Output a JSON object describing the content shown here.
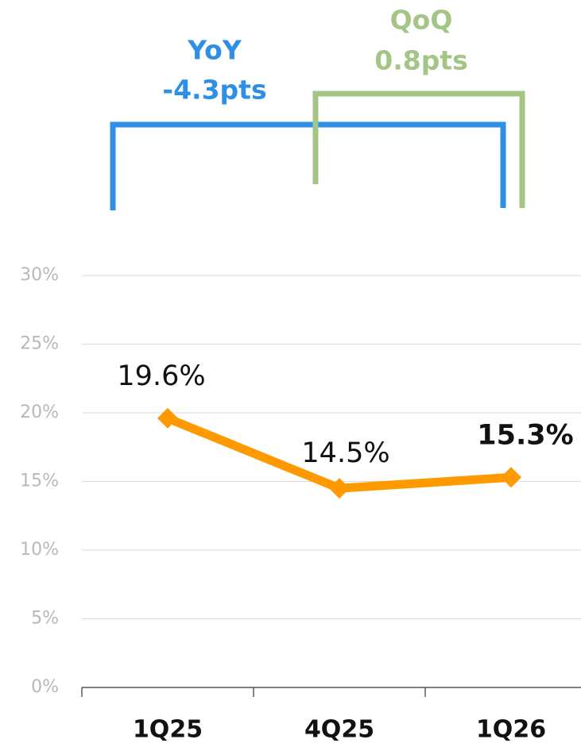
{
  "chart_data": {
    "type": "line",
    "categories": [
      "1Q25",
      "4Q25",
      "1Q26"
    ],
    "series": [
      {
        "name": null,
        "color": "#ff9900",
        "values": [
          19.6,
          14.5,
          15.3
        ],
        "value_labels": [
          "19.6%",
          "14.5%",
          "15.3%"
        ]
      }
    ],
    "ylim": [
      0,
      30
    ],
    "yticks": [
      {
        "value": 0,
        "label": "0%"
      },
      {
        "value": 5,
        "label": "5%"
      },
      {
        "value": 10,
        "label": "10%"
      },
      {
        "value": 15,
        "label": "15%"
      },
      {
        "value": 20,
        "label": "20%"
      },
      {
        "value": 25,
        "label": "25%"
      },
      {
        "value": 30,
        "label": "30%"
      }
    ],
    "grid": true,
    "annotations": [
      {
        "title": "YoY",
        "text": "-4.3pts",
        "color": "#2f8ee5"
      },
      {
        "title": "QoQ",
        "text": "0.8pts",
        "color": "#a3c585"
      }
    ]
  }
}
